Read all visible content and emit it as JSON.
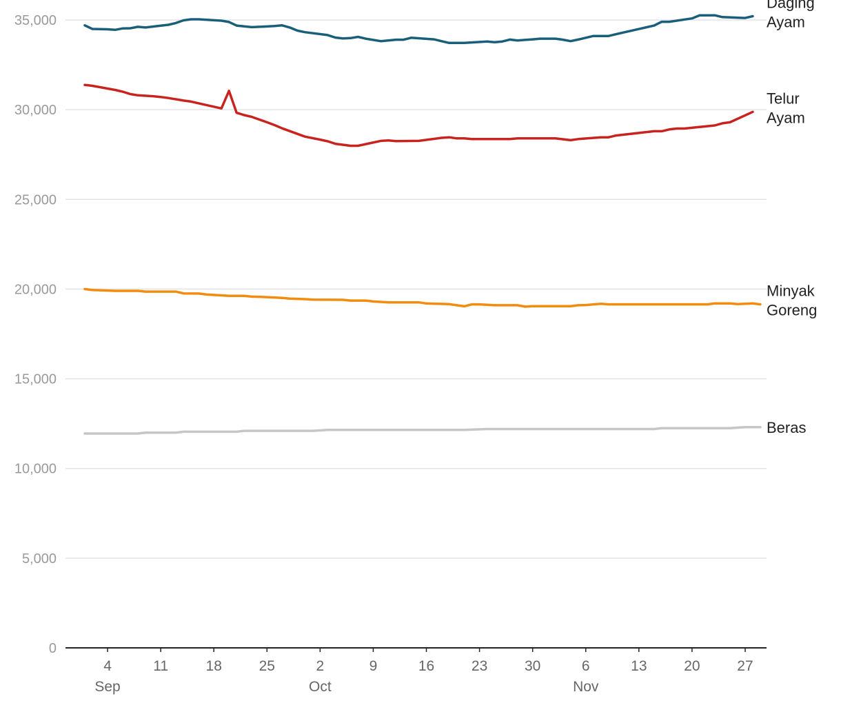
{
  "chart_data": {
    "type": "line",
    "title": "",
    "xlabel": "",
    "ylabel": "",
    "ylim": [
      0,
      35000
    ],
    "yticks": [
      0,
      5000,
      10000,
      15000,
      20000,
      25000,
      30000,
      35000
    ],
    "ytick_labels": [
      "0",
      "5,000",
      "10,000",
      "15,000",
      "20,000",
      "25,000",
      "30,000",
      "35,000"
    ],
    "xlim": [
      "2023-08-31",
      "2023-11-28"
    ],
    "xticks": [
      {
        "date": "2023-09-04",
        "label": "4"
      },
      {
        "date": "2023-09-11",
        "label": "11"
      },
      {
        "date": "2023-09-18",
        "label": "18"
      },
      {
        "date": "2023-09-25",
        "label": "25"
      },
      {
        "date": "2023-10-02",
        "label": "2"
      },
      {
        "date": "2023-10-09",
        "label": "9"
      },
      {
        "date": "2023-10-16",
        "label": "16"
      },
      {
        "date": "2023-10-23",
        "label": "23"
      },
      {
        "date": "2023-10-30",
        "label": "30"
      },
      {
        "date": "2023-11-06",
        "label": "6"
      },
      {
        "date": "2023-11-13",
        "label": "13"
      },
      {
        "date": "2023-11-20",
        "label": "20"
      },
      {
        "date": "2023-11-27",
        "label": "27"
      }
    ],
    "months": [
      {
        "date": "2023-09-04",
        "label": "Sep"
      },
      {
        "date": "2023-10-02",
        "label": "Oct"
      },
      {
        "date": "2023-11-06",
        "label": "Nov"
      }
    ],
    "grid": true,
    "legend": "direct labels at right end of lines",
    "series": [
      {
        "name": "Daging Ayam",
        "label_lines": [
          "Daging",
          "Ayam"
        ],
        "color": "#1a5f7a",
        "points": [
          [
            "2023-09-01",
            34700
          ],
          [
            "2023-09-02",
            34500
          ],
          [
            "2023-09-04",
            34480
          ],
          [
            "2023-09-05",
            34450
          ],
          [
            "2023-09-06",
            34530
          ],
          [
            "2023-09-07",
            34540
          ],
          [
            "2023-09-08",
            34620
          ],
          [
            "2023-09-09",
            34580
          ],
          [
            "2023-09-11",
            34680
          ],
          [
            "2023-09-12",
            34730
          ],
          [
            "2023-09-13",
            34830
          ],
          [
            "2023-09-14",
            34980
          ],
          [
            "2023-09-15",
            35040
          ],
          [
            "2023-09-16",
            35040
          ],
          [
            "2023-09-19",
            34960
          ],
          [
            "2023-09-20",
            34890
          ],
          [
            "2023-09-21",
            34690
          ],
          [
            "2023-09-23",
            34600
          ],
          [
            "2023-09-25",
            34640
          ],
          [
            "2023-09-26",
            34660
          ],
          [
            "2023-09-27",
            34700
          ],
          [
            "2023-09-28",
            34580
          ],
          [
            "2023-09-29",
            34410
          ],
          [
            "2023-09-30",
            34320
          ],
          [
            "2023-10-03",
            34160
          ],
          [
            "2023-10-04",
            34020
          ],
          [
            "2023-10-05",
            33970
          ],
          [
            "2023-10-06",
            33990
          ],
          [
            "2023-10-07",
            34060
          ],
          [
            "2023-10-08",
            33960
          ],
          [
            "2023-10-10",
            33820
          ],
          [
            "2023-10-12",
            33900
          ],
          [
            "2023-10-13",
            33900
          ],
          [
            "2023-10-14",
            34010
          ],
          [
            "2023-10-17",
            33920
          ],
          [
            "2023-10-19",
            33720
          ],
          [
            "2023-10-21",
            33720
          ],
          [
            "2023-10-24",
            33800
          ],
          [
            "2023-10-25",
            33760
          ],
          [
            "2023-10-26",
            33800
          ],
          [
            "2023-10-27",
            33910
          ],
          [
            "2023-10-28",
            33860
          ],
          [
            "2023-10-30",
            33920
          ],
          [
            "2023-10-31",
            33960
          ],
          [
            "2023-11-02",
            33960
          ],
          [
            "2023-11-03",
            33900
          ],
          [
            "2023-11-04",
            33820
          ],
          [
            "2023-11-05",
            33910
          ],
          [
            "2023-11-07",
            34110
          ],
          [
            "2023-11-09",
            34110
          ],
          [
            "2023-11-10",
            34210
          ],
          [
            "2023-11-15",
            34690
          ],
          [
            "2023-11-16",
            34900
          ],
          [
            "2023-11-17",
            34900
          ],
          [
            "2023-11-20",
            35090
          ],
          [
            "2023-11-21",
            35260
          ],
          [
            "2023-11-23",
            35260
          ],
          [
            "2023-11-24",
            35160
          ],
          [
            "2023-11-27",
            35110
          ],
          [
            "2023-11-28",
            35210
          ]
        ]
      },
      {
        "name": "Telur Ayam",
        "label_lines": [
          "Telur",
          "Ayam"
        ],
        "color": "#c8231f",
        "points": [
          [
            "2023-09-01",
            31380
          ],
          [
            "2023-09-02",
            31330
          ],
          [
            "2023-09-05",
            31100
          ],
          [
            "2023-09-06",
            31000
          ],
          [
            "2023-09-07",
            30870
          ],
          [
            "2023-09-08",
            30800
          ],
          [
            "2023-09-10",
            30750
          ],
          [
            "2023-09-11",
            30710
          ],
          [
            "2023-09-12",
            30650
          ],
          [
            "2023-09-13",
            30580
          ],
          [
            "2023-09-14",
            30510
          ],
          [
            "2023-09-15",
            30450
          ],
          [
            "2023-09-19",
            30070
          ],
          [
            "2023-09-20",
            31050
          ],
          [
            "2023-09-21",
            29830
          ],
          [
            "2023-09-22",
            29700
          ],
          [
            "2023-09-23",
            29600
          ],
          [
            "2023-09-25",
            29300
          ],
          [
            "2023-09-26",
            29140
          ],
          [
            "2023-09-27",
            28960
          ],
          [
            "2023-09-30",
            28500
          ],
          [
            "2023-10-02",
            28330
          ],
          [
            "2023-10-03",
            28240
          ],
          [
            "2023-10-04",
            28100
          ],
          [
            "2023-10-06",
            27990
          ],
          [
            "2023-10-07",
            27990
          ],
          [
            "2023-10-10",
            28260
          ],
          [
            "2023-10-11",
            28290
          ],
          [
            "2023-10-12",
            28250
          ],
          [
            "2023-10-15",
            28260
          ],
          [
            "2023-10-18",
            28430
          ],
          [
            "2023-10-19",
            28460
          ],
          [
            "2023-10-20",
            28400
          ],
          [
            "2023-10-21",
            28400
          ],
          [
            "2023-10-22",
            28360
          ],
          [
            "2023-10-27",
            28360
          ],
          [
            "2023-10-28",
            28400
          ],
          [
            "2023-11-02",
            28400
          ],
          [
            "2023-11-04",
            28300
          ],
          [
            "2023-11-05",
            28360
          ],
          [
            "2023-11-08",
            28460
          ],
          [
            "2023-11-09",
            28460
          ],
          [
            "2023-11-10",
            28560
          ],
          [
            "2023-11-15",
            28800
          ],
          [
            "2023-11-16",
            28800
          ],
          [
            "2023-11-17",
            28900
          ],
          [
            "2023-11-18",
            28950
          ],
          [
            "2023-11-19",
            28950
          ],
          [
            "2023-11-23",
            29120
          ],
          [
            "2023-11-24",
            29240
          ],
          [
            "2023-11-25",
            29300
          ],
          [
            "2023-11-28",
            29880
          ]
        ]
      },
      {
        "name": "Minyak Goreng",
        "label_lines": [
          "Minyak",
          "Goreng"
        ],
        "color": "#f28c0f",
        "points": [
          [
            "2023-09-01",
            20000
          ],
          [
            "2023-09-02",
            19950
          ],
          [
            "2023-09-05",
            19900
          ],
          [
            "2023-09-08",
            19900
          ],
          [
            "2023-09-09",
            19860
          ],
          [
            "2023-09-13",
            19860
          ],
          [
            "2023-09-14",
            19760
          ],
          [
            "2023-09-16",
            19750
          ],
          [
            "2023-09-17",
            19700
          ],
          [
            "2023-09-20",
            19620
          ],
          [
            "2023-09-22",
            19620
          ],
          [
            "2023-09-23",
            19580
          ],
          [
            "2023-09-25",
            19550
          ],
          [
            "2023-09-27",
            19510
          ],
          [
            "2023-09-28",
            19470
          ],
          [
            "2023-09-30",
            19440
          ],
          [
            "2023-10-01",
            19410
          ],
          [
            "2023-10-05",
            19400
          ],
          [
            "2023-10-06",
            19360
          ],
          [
            "2023-10-08",
            19360
          ],
          [
            "2023-10-09",
            19310
          ],
          [
            "2023-10-11",
            19260
          ],
          [
            "2023-10-15",
            19260
          ],
          [
            "2023-10-16",
            19200
          ],
          [
            "2023-10-19",
            19160
          ],
          [
            "2023-10-20",
            19100
          ],
          [
            "2023-10-21",
            19040
          ],
          [
            "2023-10-22",
            19150
          ],
          [
            "2023-10-23",
            19150
          ],
          [
            "2023-10-25",
            19100
          ],
          [
            "2023-10-28",
            19100
          ],
          [
            "2023-10-29",
            19020
          ],
          [
            "2023-10-30",
            19050
          ],
          [
            "2023-11-04",
            19050
          ],
          [
            "2023-11-05",
            19100
          ],
          [
            "2023-11-06",
            19110
          ],
          [
            "2023-11-08",
            19180
          ],
          [
            "2023-11-09",
            19150
          ],
          [
            "2023-11-22",
            19150
          ],
          [
            "2023-11-23",
            19200
          ],
          [
            "2023-11-25",
            19200
          ],
          [
            "2023-11-26",
            19160
          ],
          [
            "2023-11-28",
            19200
          ],
          [
            "2023-11-29",
            19150
          ]
        ]
      },
      {
        "name": "Beras",
        "label_lines": [
          "Beras"
        ],
        "color": "#c6c6c6",
        "points": [
          [
            "2023-09-01",
            11950
          ],
          [
            "2023-09-08",
            11950
          ],
          [
            "2023-09-09",
            12000
          ],
          [
            "2023-09-13",
            12000
          ],
          [
            "2023-09-14",
            12050
          ],
          [
            "2023-09-21",
            12050
          ],
          [
            "2023-09-22",
            12100
          ],
          [
            "2023-10-01",
            12100
          ],
          [
            "2023-10-03",
            12150
          ],
          [
            "2023-10-21",
            12150
          ],
          [
            "2023-10-24",
            12200
          ],
          [
            "2023-11-15",
            12200
          ],
          [
            "2023-11-16",
            12250
          ],
          [
            "2023-11-25",
            12250
          ],
          [
            "2023-11-27",
            12300
          ],
          [
            "2023-11-29",
            12300
          ]
        ]
      }
    ]
  }
}
